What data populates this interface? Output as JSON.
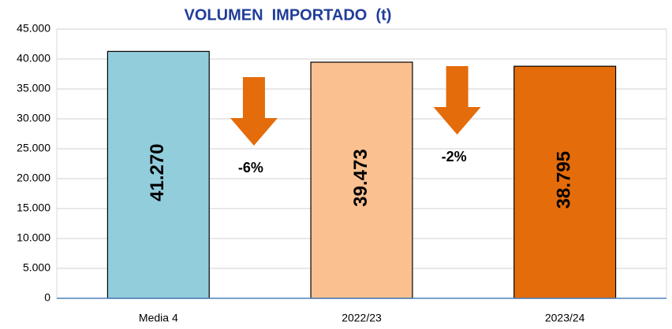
{
  "chart_data": {
    "type": "bar",
    "title": "VOLUMEN  IMPORTADO  (t)",
    "categories": [
      "Media 4",
      "2022/23",
      "2023/24"
    ],
    "values": [
      41270,
      39473,
      38795
    ],
    "value_labels": [
      "41.270",
      "39.473",
      "38.795"
    ],
    "colors": [
      "#92cddc",
      "#fac090",
      "#e46c0a"
    ],
    "value_label_colors": [
      "#000000",
      "#000000",
      "#ffffff"
    ],
    "annotations": [
      "-6%",
      "-2%"
    ],
    "ylim": [
      0,
      45000
    ],
    "yticks": [
      0,
      {
        "value": 5000,
        "label": "5.000"
      },
      {
        "value": 10000,
        "label": "10.000"
      },
      {
        "value": 15000,
        "label": "15.000"
      },
      {
        "value": 20000,
        "label": "20.000"
      },
      {
        "value": 25000,
        "label": "25.000"
      },
      {
        "value": 30000,
        "label": "30.000"
      },
      {
        "value": 35000,
        "label": "35.000"
      },
      {
        "value": 40000,
        "label": "40.000"
      },
      {
        "value": 45000,
        "label": "45.000"
      }
    ],
    "grid": true
  }
}
